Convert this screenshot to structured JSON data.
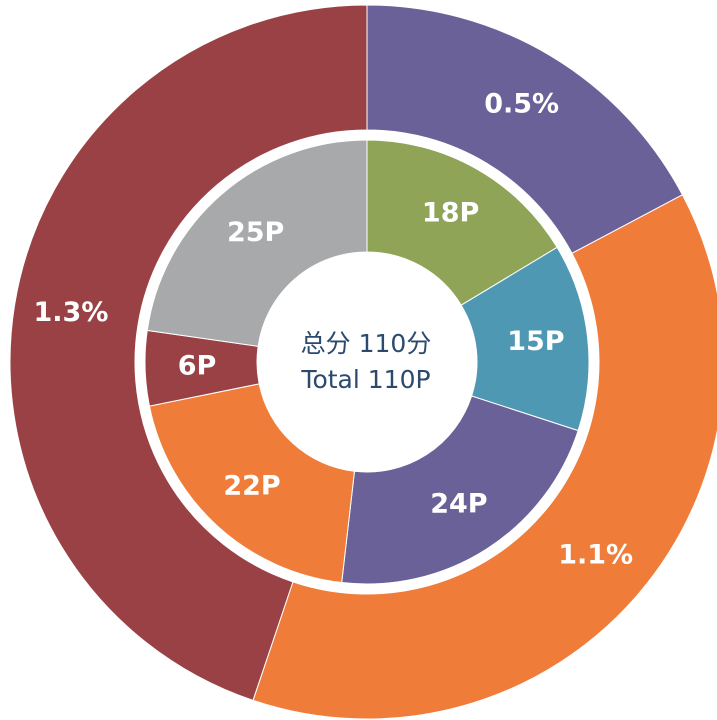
{
  "chart_data": [
    {
      "type": "donut",
      "values": [
        18,
        15,
        24,
        22,
        6,
        25
      ],
      "value_labels": [
        "18P",
        "15P",
        "24P",
        "22P",
        "6P",
        "25P"
      ],
      "colors": [
        "#8fa456",
        "#4f98b4",
        "#6a6198",
        "#f07c3a",
        "#9a4145",
        "#a8a9ab"
      ],
      "center_label": [
        "总分 110分",
        "Total  110P"
      ]
    },
    {
      "type": "donut",
      "values": [
        0.5,
        1.1,
        1.3
      ],
      "value_labels": [
        "0.5%",
        "1.1%",
        "1.3%"
      ],
      "colors": [
        "#6a6198",
        "#f07c3a",
        "#9a4145"
      ]
    }
  ]
}
